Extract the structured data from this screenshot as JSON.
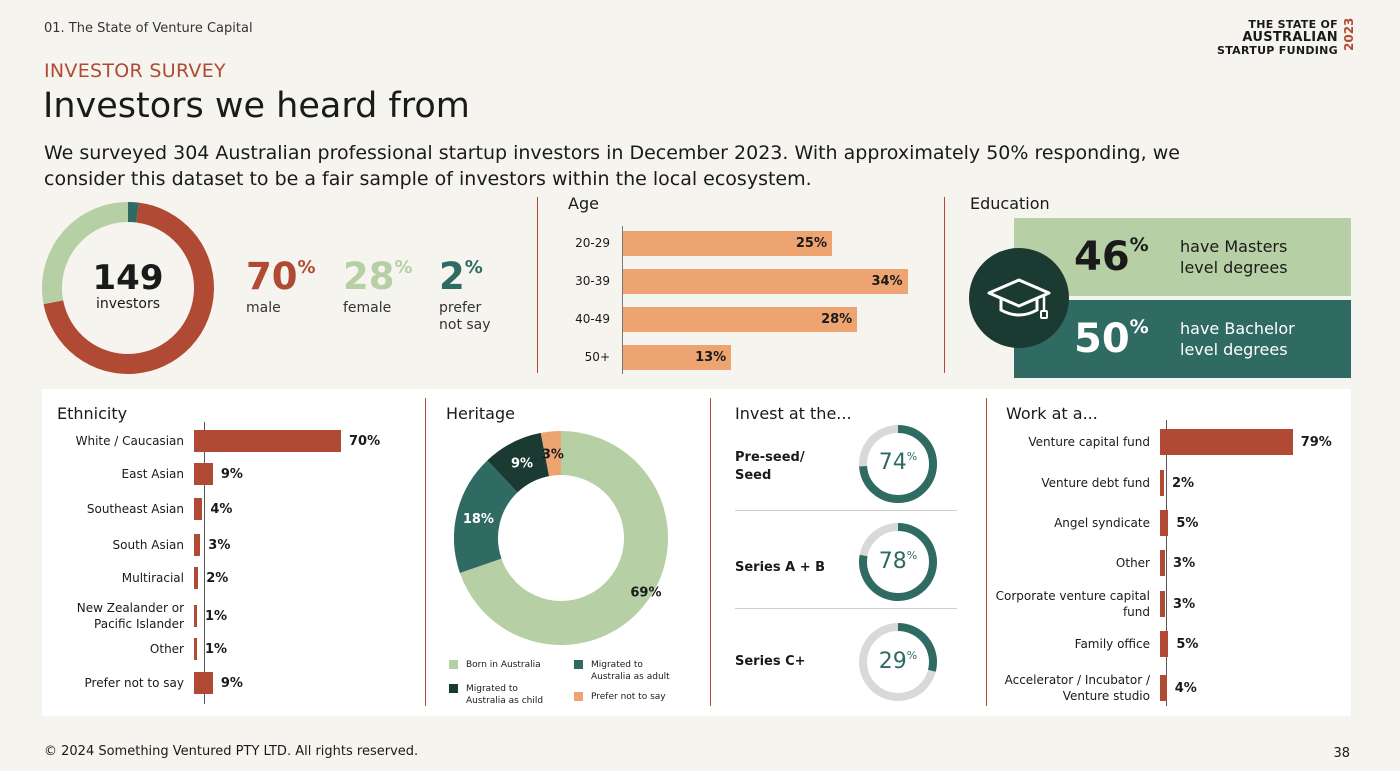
{
  "header": {
    "breadcrumb": "01. The State of Venture Capital",
    "brand_line1": "THE STATE OF",
    "brand_line2": "AUSTRALIAN",
    "brand_line3": "STARTUP FUNDING",
    "brand_year": "2023",
    "kicker": "INVESTOR SURVEY",
    "title": "Investors we heard from",
    "lead": "We surveyed 304 Australian professional startup investors in December 2023. With approximately 50% responding, we consider this dataset to be a fair sample of investors within the local ecosystem."
  },
  "colors": {
    "rust": "#b04a34",
    "sage": "#b7cfa5",
    "teal": "#2f6b62",
    "dark_green": "#1b3a31",
    "orange": "#eda470",
    "grey": "#d9d9d9"
  },
  "respondents": {
    "count": "149",
    "count_label": "investors"
  },
  "gender": [
    {
      "value": "70",
      "label": "male",
      "color": "#b04a34"
    },
    {
      "value": "28",
      "label": "female",
      "color": "#b7cfa5"
    },
    {
      "value": "2",
      "label": "prefer not say",
      "color": "#2f6b62"
    }
  ],
  "age": {
    "title": "Age",
    "rows": [
      {
        "label": "20-29",
        "value": 25,
        "text": "25%"
      },
      {
        "label": "30-39",
        "value": 34,
        "text": "34%"
      },
      {
        "label": "40-49",
        "value": 28,
        "text": "28%"
      },
      {
        "label": "50+",
        "value": 13,
        "text": "13%"
      }
    ]
  },
  "education": {
    "title": "Education",
    "icon": "graduation-cap-icon",
    "items": [
      {
        "value": "46",
        "text_line1": "have Masters",
        "text_line2": "level degrees"
      },
      {
        "value": "50",
        "text_line1": "have Bachelor",
        "text_line2": "level degrees"
      }
    ]
  },
  "ethnicity": {
    "title": "Ethnicity",
    "rows": [
      {
        "label": "White / Caucasian",
        "value": 70,
        "text": "70%"
      },
      {
        "label": "East Asian",
        "value": 9,
        "text": "9%"
      },
      {
        "label": "Southeast Asian",
        "value": 4,
        "text": "4%"
      },
      {
        "label": "South Asian",
        "value": 3,
        "text": "3%"
      },
      {
        "label": "Multiracial",
        "value": 2,
        "text": "2%"
      },
      {
        "label": "New Zealander or Pacific Islander",
        "value": 1,
        "text": "1%"
      },
      {
        "label": "Other",
        "value": 1,
        "text": "1%"
      },
      {
        "label": "Prefer not to say",
        "value": 9,
        "text": "9%"
      }
    ]
  },
  "heritage": {
    "title": "Heritage",
    "slices": [
      {
        "label": "Born in Australia",
        "value": 69,
        "text": "69%",
        "color": "#b7cfa5"
      },
      {
        "label": "Migrated to Australia as adult",
        "value": 18,
        "text": "18%",
        "color": "#2f6b62"
      },
      {
        "label": "Migrated to Australia as child",
        "value": 9,
        "text": "9%",
        "color": "#1b3a31"
      },
      {
        "label": "Prefer not to say",
        "value": 3,
        "text": "3%",
        "color": "#eda470"
      }
    ]
  },
  "invest_at": {
    "title": "Invest at the...",
    "rows": [
      {
        "label_line1": "Pre-seed/",
        "label_line2": "Seed",
        "value": "74"
      },
      {
        "label_line1": "Series A + B",
        "label_line2": "",
        "value": "78"
      },
      {
        "label_line1": "Series C+",
        "label_line2": "",
        "value": "29"
      }
    ]
  },
  "work_at": {
    "title": "Work at a...",
    "rows": [
      {
        "label": "Venture capital fund",
        "value": 79,
        "text": "79%"
      },
      {
        "label": "Venture debt fund",
        "value": 2,
        "text": "2%"
      },
      {
        "label": "Angel syndicate",
        "value": 5,
        "text": "5%"
      },
      {
        "label": "Other",
        "value": 3,
        "text": "3%"
      },
      {
        "label": "Corporate venture capital fund",
        "value": 3,
        "text": "3%"
      },
      {
        "label": "Family office",
        "value": 5,
        "text": "5%"
      },
      {
        "label": "Accelerator / Incubator / Venture studio",
        "value": 4,
        "text": "4%"
      }
    ]
  },
  "footer": {
    "copyright": "© 2024 Something Ventured PTY LTD. All rights reserved.",
    "page": "38"
  },
  "chart_data": [
    {
      "type": "pie",
      "title": "",
      "categories": [
        "male",
        "female",
        "prefer not say"
      ],
      "values": [
        70,
        28,
        2
      ]
    },
    {
      "type": "bar",
      "title": "Age",
      "categories": [
        "20-29",
        "30-39",
        "40-49",
        "50+"
      ],
      "values": [
        25,
        34,
        28,
        13
      ]
    },
    {
      "type": "bar",
      "title": "Ethnicity",
      "categories": [
        "White / Caucasian",
        "East Asian",
        "Southeast Asian",
        "South Asian",
        "Multiracial",
        "New Zealander or Pacific Islander",
        "Other",
        "Prefer not to say"
      ],
      "values": [
        70,
        9,
        4,
        3,
        2,
        1,
        1,
        9
      ]
    },
    {
      "type": "pie",
      "title": "Heritage",
      "categories": [
        "Born in Australia",
        "Migrated to Australia as adult",
        "Migrated to Australia as child",
        "Prefer not to say"
      ],
      "values": [
        69,
        18,
        9,
        3
      ]
    },
    {
      "type": "pie",
      "title": "Invest at the...",
      "categories": [
        "Pre-seed/ Seed",
        "Series A + B",
        "Series C+"
      ],
      "values": [
        74,
        78,
        29
      ]
    },
    {
      "type": "bar",
      "title": "Work at a...",
      "categories": [
        "Venture capital fund",
        "Venture debt fund",
        "Angel syndicate",
        "Other",
        "Corporate venture capital fund",
        "Family office",
        "Accelerator / Incubator / Venture studio"
      ],
      "values": [
        79,
        2,
        5,
        3,
        3,
        5,
        4
      ]
    }
  ]
}
